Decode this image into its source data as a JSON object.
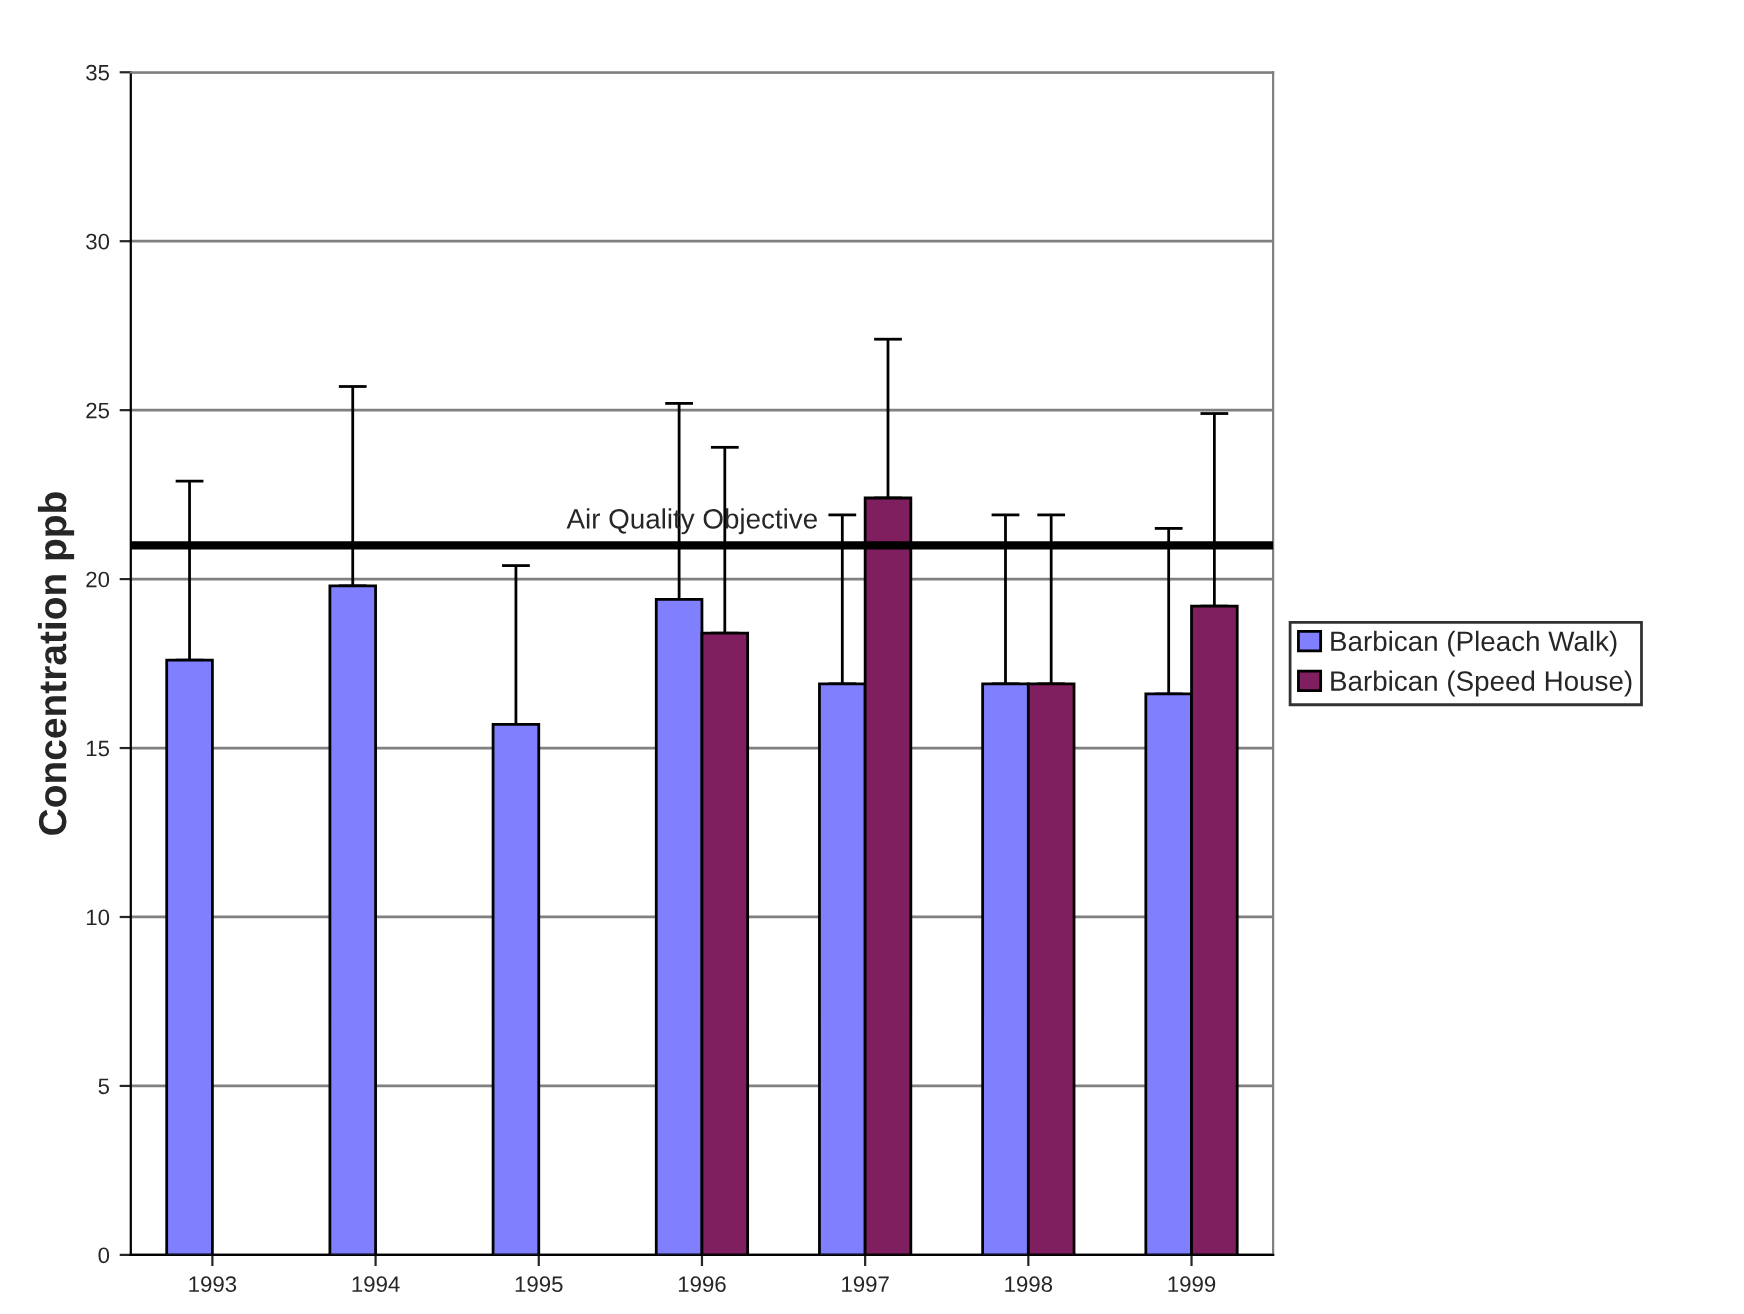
{
  "chart_data": {
    "type": "bar",
    "ylabel": "Concentration ppb",
    "categories": [
      "1993",
      "1994",
      "1995",
      "1996",
      "1997",
      "1998",
      "1999"
    ],
    "series": [
      {
        "name": "Barbican (Pleach Walk)",
        "color": "#8080ff",
        "values": [
          17.6,
          19.8,
          15.7,
          19.4,
          16.9,
          16.9,
          16.6
        ],
        "errors": [
          [
            17.6,
            22.9
          ],
          [
            19.8,
            25.7
          ],
          [
            15.7,
            20.4
          ],
          [
            19.4,
            25.2
          ],
          [
            16.9,
            21.9
          ],
          [
            16.9,
            21.9
          ],
          [
            16.6,
            21.5
          ]
        ]
      },
      {
        "name": "Barbican (Speed House)",
        "color": "#7f1f5f",
        "values": [
          null,
          null,
          null,
          18.4,
          22.4,
          16.9,
          19.2
        ],
        "errors": [
          null,
          null,
          null,
          [
            18.4,
            23.9
          ],
          [
            22.4,
            27.1
          ],
          [
            16.9,
            21.9
          ],
          [
            19.2,
            24.9
          ]
        ]
      }
    ],
    "ylim": [
      0,
      35
    ],
    "yticks": [
      0,
      5,
      10,
      15,
      20,
      25,
      30,
      35
    ],
    "grid": "y",
    "legend": "right",
    "ref_lines": [
      {
        "axis": "y",
        "value": 21.0,
        "label": "Air Quality Objective",
        "color": "#000000"
      }
    ]
  }
}
